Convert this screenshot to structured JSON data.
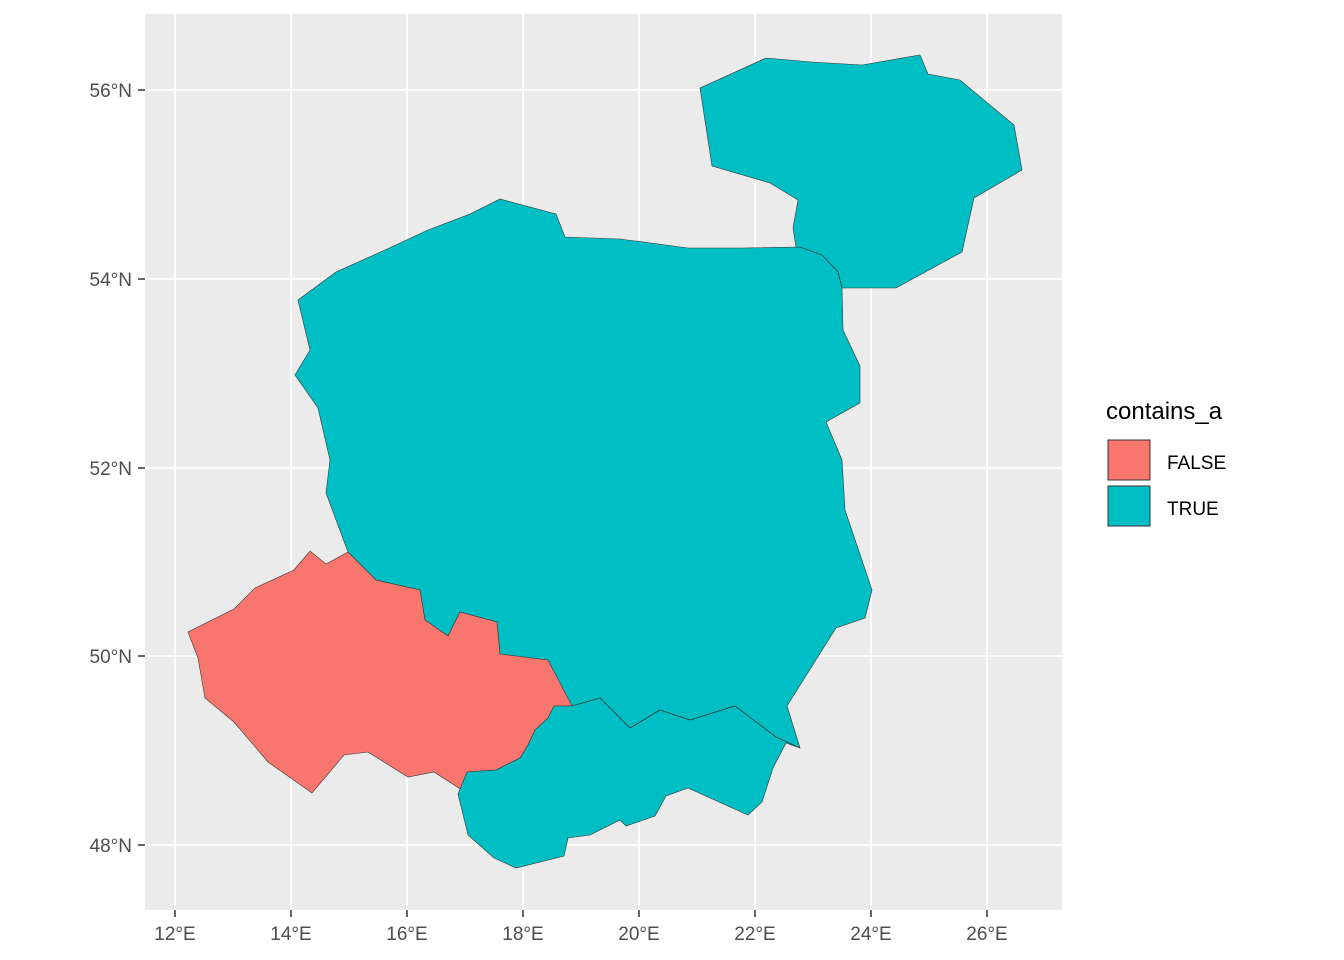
{
  "map": {
    "x_tick_labels": [
      "12°E",
      "14°E",
      "16°E",
      "18°E",
      "20°E",
      "22°E",
      "24°E",
      "26°E"
    ],
    "y_tick_labels": [
      "48°N",
      "50°N",
      "52°N",
      "54°N",
      "56°N"
    ],
    "panel_background": "#ebebeb",
    "grid_color": "#ffffff",
    "axis_text_color": "#4d4d4d"
  },
  "legend": {
    "title": "contains_a",
    "items": [
      {
        "label": "FALSE",
        "color": "#f8766d"
      },
      {
        "label": "TRUE",
        "color": "#00bfc4"
      }
    ]
  },
  "regions": [
    {
      "fill_key": "TRUE",
      "color": "#00bfc4"
    },
    {
      "fill_key": "TRUE",
      "color": "#00bfc4"
    },
    {
      "fill_key": "FALSE",
      "color": "#f8766d"
    },
    {
      "fill_key": "TRUE",
      "color": "#00bfc4"
    }
  ]
}
